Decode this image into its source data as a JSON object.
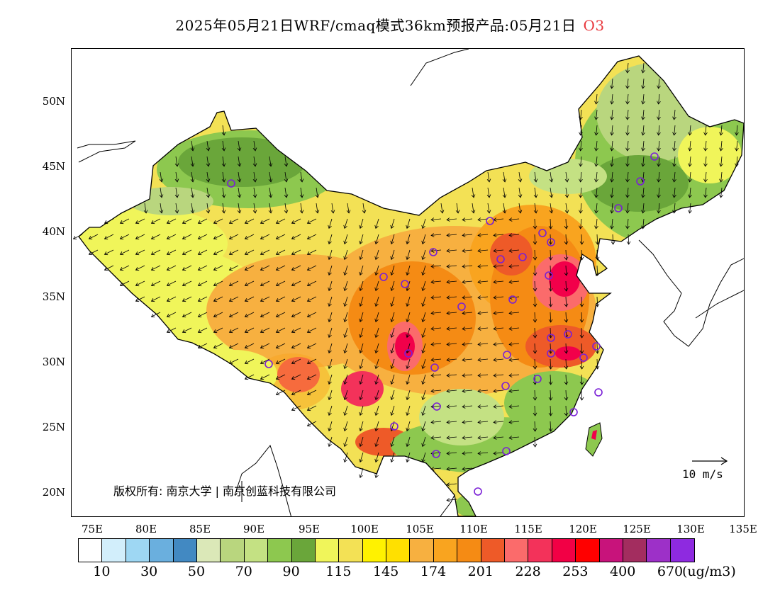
{
  "title": {
    "text": "2025年05月21日WRF/cmaq模式36km预报产品:05月21日",
    "species": "O3",
    "species_color": "#e8383d"
  },
  "axes": {
    "lat_ticks": [
      "50N",
      "45N",
      "40N",
      "35N",
      "30N",
      "25N",
      "20N"
    ],
    "lon_ticks": [
      "75E",
      "80E",
      "85E",
      "90E",
      "95E",
      "100E",
      "105E",
      "110E",
      "115E",
      "120E",
      "125E",
      "130E",
      "135E"
    ]
  },
  "copyright": "版权所有: 南京大学 | 南京创蓝科技有限公司",
  "wind_scale": {
    "label": "10 m/s"
  },
  "legend": {
    "colors": [
      "#ffffff",
      "#d2eefb",
      "#9ed7f3",
      "#6aafde",
      "#4289c2",
      "#dbe8b8",
      "#b9d67e",
      "#c4e183",
      "#8dc84f",
      "#6aa63a",
      "#f0f55a",
      "#f3e155",
      "#fff200",
      "#ffe000",
      "#f7b040",
      "#f9a41f",
      "#f58b14",
      "#ee5a28",
      "#fb6b6b",
      "#f3325a",
      "#f20045",
      "#ff0000",
      "#c8137b",
      "#a32d5f",
      "#9d30c8",
      "#8e2ae0"
    ],
    "tick_labels": [
      "10",
      "30",
      "50",
      "70",
      "90",
      "115",
      "145",
      "174",
      "201",
      "228",
      "253",
      "400",
      "670"
    ],
    "unit": "(ug/m3)"
  },
  "icons": {
    "city_marker": "purple-ring-icon",
    "wind_vector": "arrow-icon"
  }
}
